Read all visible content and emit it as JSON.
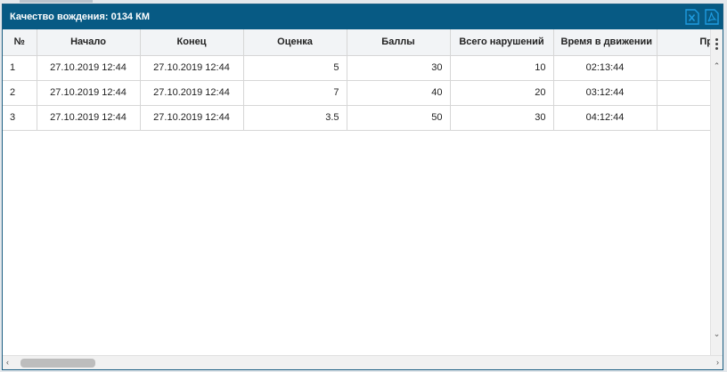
{
  "window": {
    "title": "Качество вождения: 0134 КМ"
  },
  "export": {
    "excel_icon": "excel-export-icon",
    "pdf_icon": "pdf-export-icon",
    "accent": "#1e9be0"
  },
  "colors": {
    "titlebar": "#075a84",
    "header_bg": "#f2f4f6"
  },
  "table": {
    "columns": [
      "№",
      "Начало",
      "Конец",
      "Оценка",
      "Баллы",
      "Всего нарушений",
      "Время в движении",
      "Про"
    ],
    "rows": [
      [
        "1",
        "27.10.2019 12:44",
        "27.10.2019 12:44",
        "5",
        "30",
        "10",
        "02:13:44",
        ""
      ],
      [
        "2",
        "27.10.2019 12:44",
        "27.10.2019 12:44",
        "7",
        "40",
        "20",
        "03:12:44",
        ""
      ],
      [
        "3",
        "27.10.2019 12:44",
        "27.10.2019 12:44",
        "3.5",
        "50",
        "30",
        "04:12:44",
        ""
      ]
    ]
  },
  "scroll": {
    "menu_icon": "kebab-menu-icon"
  }
}
